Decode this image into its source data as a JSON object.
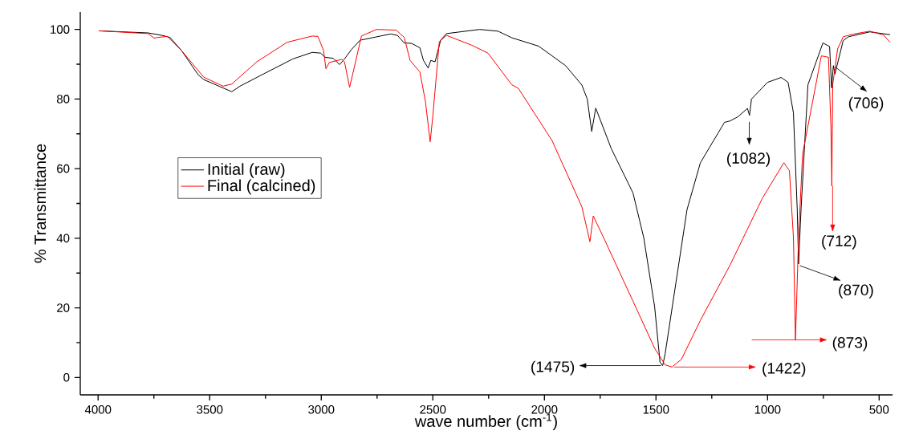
{
  "chart_data": {
    "type": "line",
    "xlabel": "wave number (cm$^{-1}$)",
    "ylabel": "% Transmittance",
    "xlim": [
      4080,
      440
    ],
    "ylim": [
      -5,
      105
    ],
    "xticks": [
      4000,
      3500,
      3000,
      2500,
      2000,
      1500,
      1000,
      500
    ],
    "yticks": [
      0,
      20,
      40,
      60,
      80,
      100
    ],
    "legend": "left",
    "grid": false,
    "marker": "none",
    "line_style": "solid",
    "series": [
      {
        "name": "Initial (raw)",
        "color": "#000000",
        "x": [
          3997,
          3776,
          3714,
          3678,
          3627,
          3552,
          3527,
          3401,
          3364,
          3265,
          3128,
          3041,
          3003,
          2983,
          2946,
          2918,
          2896,
          2865,
          2826,
          2689,
          2659,
          2628,
          2595,
          2558,
          2542,
          2521,
          2509,
          2490,
          2465,
          2439,
          2290,
          2208,
          2146,
          2026,
          1905,
          1832,
          1808,
          1788,
          1770,
          1700,
          1603,
          1555,
          1506,
          1482,
          1470,
          1459,
          1410,
          1361,
          1301,
          1193,
          1168,
          1133,
          1090,
          1081,
          1072,
          1000,
          939,
          908,
          884,
          867,
          861,
          850,
          819,
          752,
          722,
          713,
          705,
          698,
          661,
          637,
          542,
          451
        ],
        "values": [
          99.6,
          99.0,
          98.3,
          97.7,
          94.0,
          87.0,
          85.6,
          82.1,
          83.7,
          87.0,
          91.5,
          93.4,
          93.2,
          92.0,
          91.7,
          89.9,
          91.5,
          94.2,
          96.9,
          98.7,
          98.3,
          96.1,
          96.0,
          94.7,
          91.1,
          88.9,
          91.1,
          90.7,
          96.9,
          98.8,
          100.0,
          99.5,
          97.6,
          95.2,
          89.6,
          84.0,
          80.0,
          70.7,
          77.4,
          65.7,
          53.0,
          40.2,
          20.3,
          4.4,
          3.4,
          6.8,
          27.5,
          48.2,
          61.7,
          73.3,
          73.7,
          74.9,
          77.3,
          75.3,
          80.0,
          84.8,
          86.2,
          84.8,
          76.0,
          48.2,
          32.6,
          48.2,
          84.1,
          96.1,
          95.1,
          83.2,
          89.6,
          87.2,
          96.8,
          97.9,
          99.3,
          98.5
        ]
      },
      {
        "name": "Final (calcined)",
        "color": "#ff0000",
        "x": [
          3997,
          3776,
          3749,
          3734,
          3690,
          3627,
          3527,
          3440,
          3401,
          3289,
          3153,
          3041,
          3015,
          2990,
          2979,
          2964,
          2908,
          2896,
          2873,
          2852,
          2820,
          2752,
          2664,
          2628,
          2602,
          2558,
          2533,
          2512,
          2500,
          2471,
          2439,
          2327,
          2253,
          2146,
          2117,
          1966,
          1832,
          1796,
          1781,
          1735,
          1603,
          1506,
          1459,
          1428,
          1386,
          1301,
          1168,
          1024,
          927,
          902,
          884,
          875,
          861,
          843,
          759,
          727,
          716,
          712,
          708,
          686,
          661,
          612,
          542,
          480,
          451
        ],
        "values": [
          99.6,
          98.8,
          97.5,
          97.7,
          98.0,
          94.0,
          86.3,
          83.7,
          84.3,
          90.7,
          96.3,
          98.1,
          98.0,
          94.0,
          88.7,
          90.5,
          91.4,
          90.7,
          83.4,
          89.1,
          98.1,
          100.0,
          99.8,
          97.7,
          91.1,
          87.8,
          79.2,
          67.7,
          75.1,
          96.5,
          98.3,
          95.5,
          93.2,
          84.1,
          83.1,
          68.1,
          49.0,
          39.0,
          46.4,
          40.2,
          21.9,
          8.4,
          3.6,
          3.0,
          5.2,
          16.4,
          32.3,
          51.4,
          61.7,
          59.4,
          40.2,
          10.8,
          40.2,
          64.2,
          92.4,
          92.0,
          72.0,
          55.0,
          84.1,
          94.4,
          97.9,
          98.7,
          99.5,
          98.4,
          96.3
        ]
      }
    ],
    "annotations": [
      "(1475)",
      "(1422)",
      {
        "text": "(1082)",
        "x": 1082,
        "y": 75.3
      },
      {
        "text": "(870)",
        "x": 870,
        "y": 32.6
      },
      {
        "text": "(873)",
        "x": 873,
        "y": 10.8
      },
      {
        "text": "(712)",
        "x": 712,
        "y": 55.0
      },
      {
        "text": "(706)",
        "x": 706,
        "y": 89.6
      }
    ]
  }
}
